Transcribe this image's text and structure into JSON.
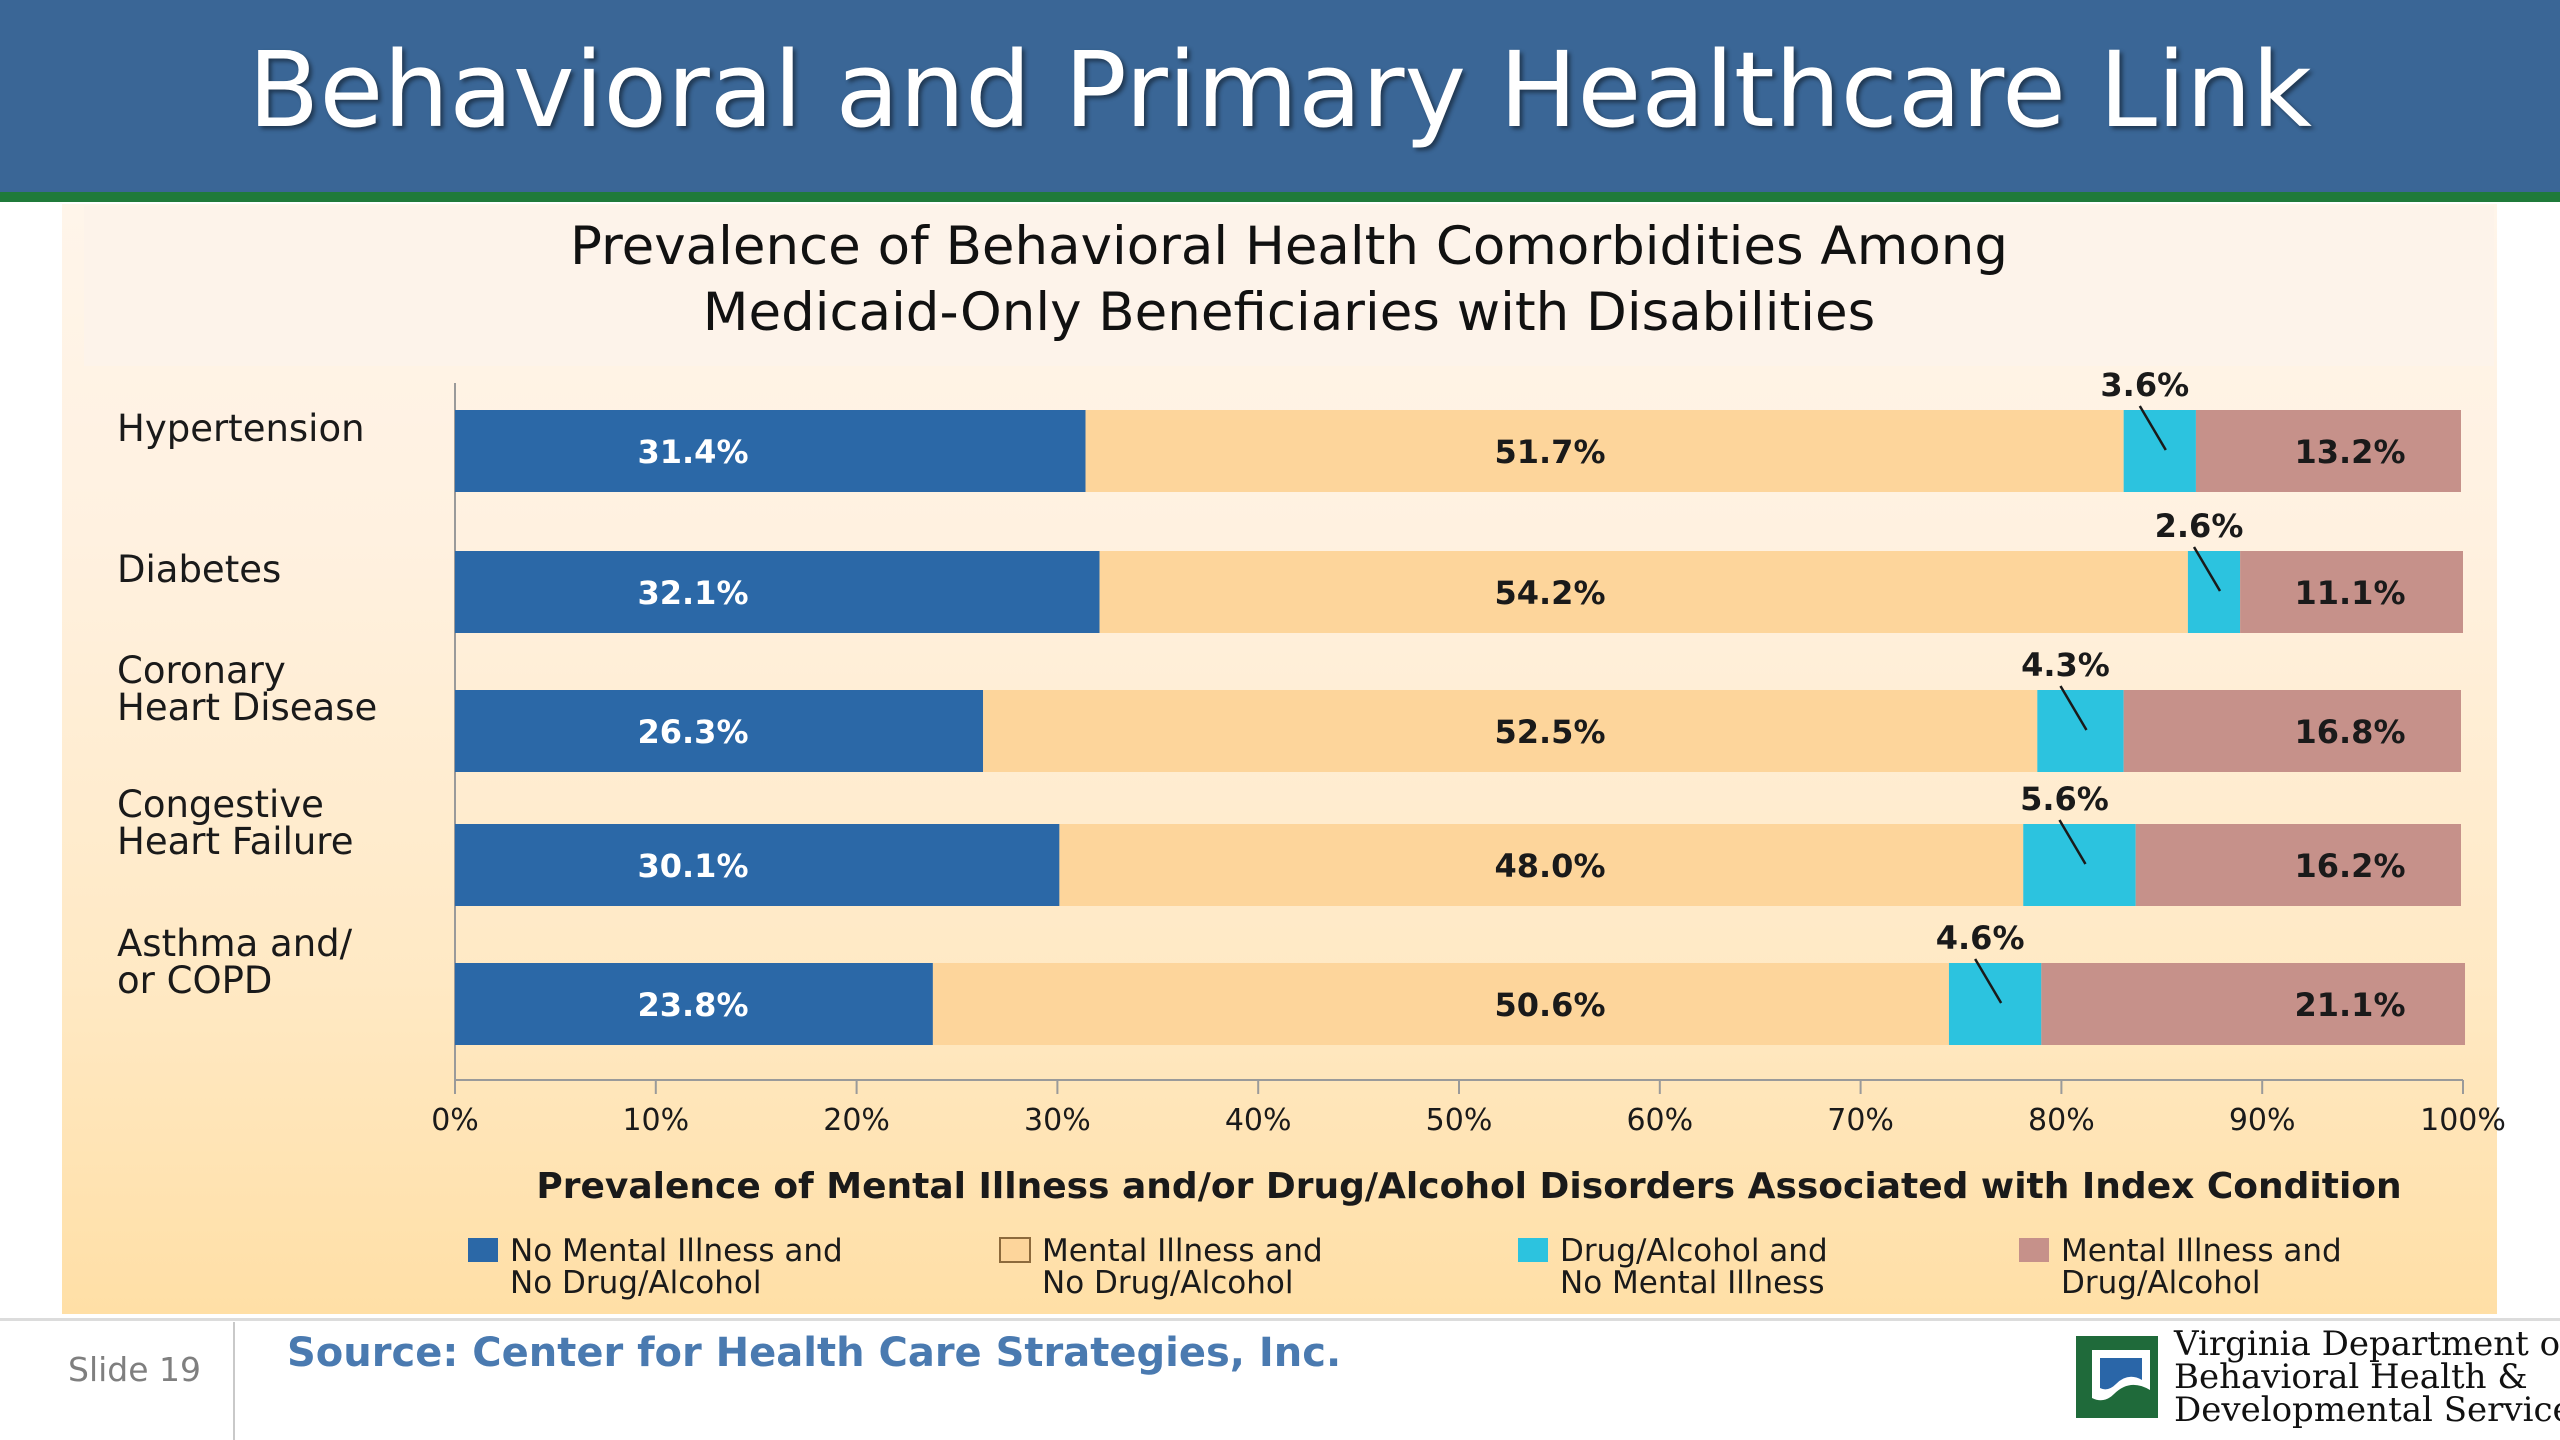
{
  "slide": {
    "title": "Behavioral and Primary Healthcare Link",
    "number": "Slide 19",
    "source": "Source: Center for Health Care Strategies, Inc.",
    "org": [
      "Virginia Department of",
      "Behavioral Health &",
      "Developmental Services"
    ]
  },
  "colors": {
    "title_bar": "#3a6696",
    "title_rule": "#1f7a3a",
    "series": [
      "#2b68a7",
      "#fdd59b",
      "#2cc3df",
      "#c6918a"
    ]
  },
  "chart_data": {
    "type": "bar",
    "orientation": "horizontal",
    "stacked": true,
    "title": [
      "Prevalence of Behavioral Health Comorbidities Among",
      "Medicaid-Only Beneficiaries with Disabilities"
    ],
    "xlabel": "Prevalence of Mental Illness and/or Drug/Alcohol Disorders Associated with Index Condition",
    "xlim": [
      0,
      100
    ],
    "xticks": [
      "0%",
      "10%",
      "20%",
      "30%",
      "40%",
      "50%",
      "60%",
      "70%",
      "80%",
      "90%",
      "100%"
    ],
    "categories": [
      [
        "Hypertension"
      ],
      [
        "Diabetes"
      ],
      [
        "Coronary",
        "Heart Disease"
      ],
      [
        "Congestive",
        "Heart Failure"
      ],
      [
        "Asthma and/",
        "or COPD"
      ]
    ],
    "series": [
      {
        "name": [
          "No Mental Illness and",
          "No Drug/Alcohol"
        ],
        "values": [
          31.4,
          32.1,
          26.3,
          30.1,
          23.8
        ],
        "labels": [
          "31.4%",
          "32.1%",
          "26.3%",
          "30.1%",
          "23.8%"
        ]
      },
      {
        "name": [
          "Mental Illness and",
          "No Drug/Alcohol"
        ],
        "values": [
          51.7,
          54.2,
          52.5,
          48.0,
          50.6
        ],
        "labels": [
          "51.7%",
          "54.2%",
          "52.5%",
          "48.0%",
          "50.6%"
        ]
      },
      {
        "name": [
          "Drug/Alcohol and",
          "No Mental Illness"
        ],
        "values": [
          3.6,
          2.6,
          4.3,
          5.6,
          4.6
        ],
        "labels": [
          "3.6%",
          "2.6%",
          "4.3%",
          "5.6%",
          "4.6%"
        ]
      },
      {
        "name": [
          "Mental Illness and",
          "Drug/Alcohol"
        ],
        "values": [
          13.2,
          11.1,
          16.8,
          16.2,
          21.1
        ],
        "labels": [
          "13.2%",
          "11.1%",
          "16.8%",
          "16.2%",
          "21.1%"
        ]
      }
    ],
    "legend": "bottom",
    "grid": false
  }
}
